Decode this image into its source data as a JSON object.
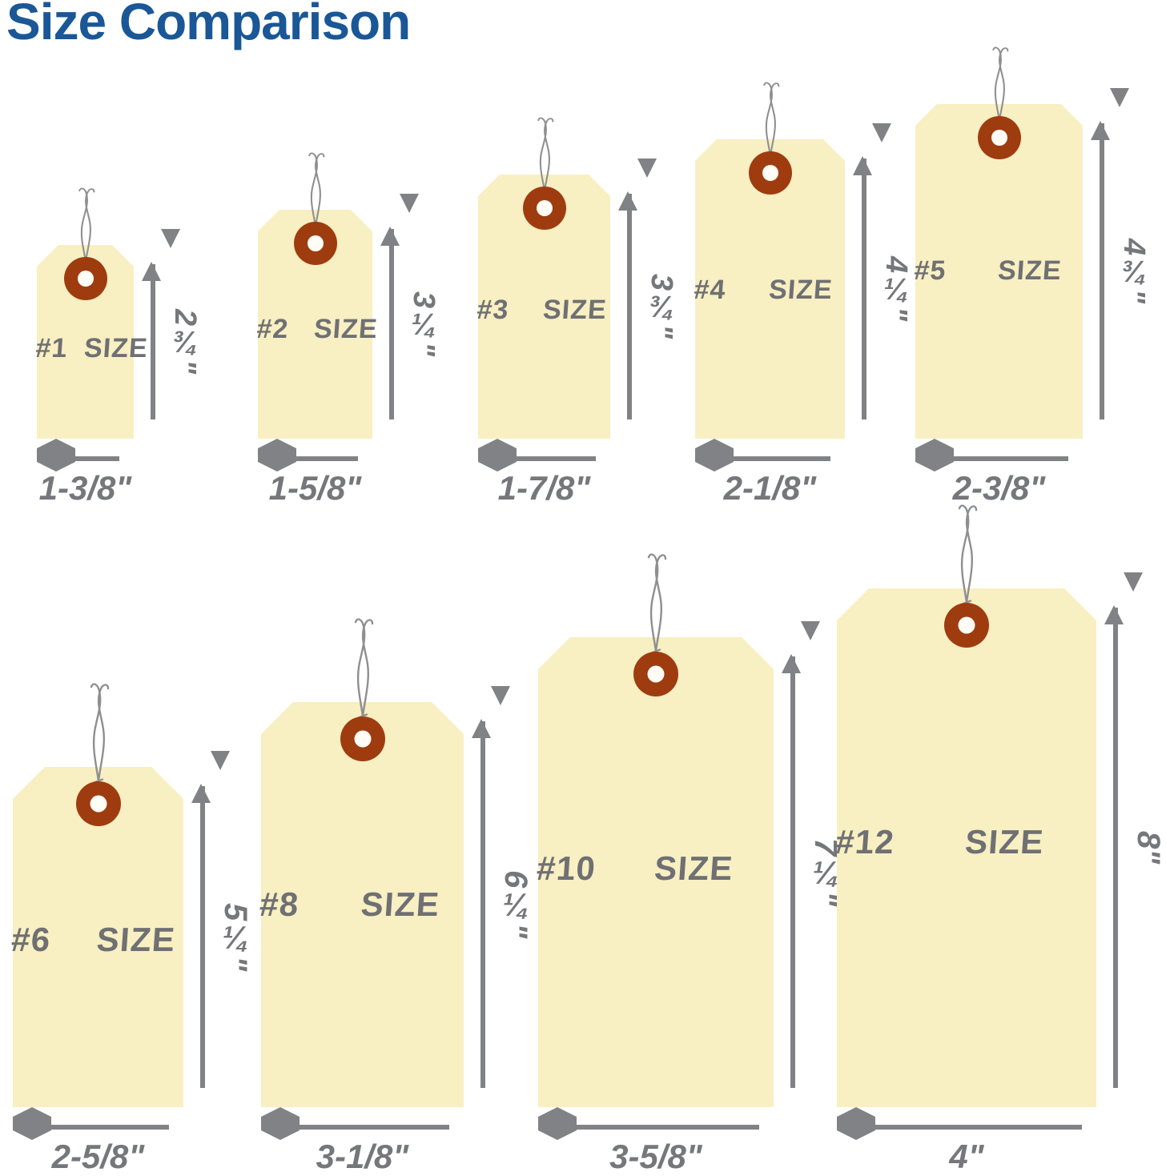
{
  "title": "Size Comparison",
  "colors": {
    "title": "#1a5796",
    "background": "#ffffff",
    "tag_fill": "#f8efc2",
    "grommet": "#9e3c10",
    "grommet_hole": "#fffdf6",
    "tag_text": "#6f7073",
    "dimension_text": "#76777b",
    "arrow": "#808285",
    "wire": "#8e8f91"
  },
  "rows": [
    {
      "tags": [
        {
          "size_word": "SIZE",
          "size_number": "#1",
          "height_label": "2¾\"",
          "width_label": "1-3/8\"",
          "height_in": 2.75,
          "width_in": 1.375
        },
        {
          "size_word": "SIZE",
          "size_number": "#2",
          "height_label": "3¼\"",
          "width_label": "1-5/8\"",
          "height_in": 3.25,
          "width_in": 1.625
        },
        {
          "size_word": "SIZE",
          "size_number": "#3",
          "height_label": "3¾\"",
          "width_label": "1-7/8\"",
          "height_in": 3.75,
          "width_in": 1.875
        },
        {
          "size_word": "SIZE",
          "size_number": "#4",
          "height_label": "4¼\"",
          "width_label": "2-1/8\"",
          "height_in": 4.25,
          "width_in": 2.125
        },
        {
          "size_word": "SIZE",
          "size_number": "#5",
          "height_label": "4¾\"",
          "width_label": "2-3/8\"",
          "height_in": 4.75,
          "width_in": 2.375
        }
      ]
    },
    {
      "tags": [
        {
          "size_word": "SIZE",
          "size_number": "#6",
          "height_label": "5¼\"",
          "width_label": "2-5/8\"",
          "height_in": 5.25,
          "width_in": 2.625
        },
        {
          "size_word": "SIZE",
          "size_number": "#8",
          "height_label": "6¼\"",
          "width_label": "3-1/8\"",
          "height_in": 6.25,
          "width_in": 3.125
        },
        {
          "size_word": "SIZE",
          "size_number": "#10",
          "height_label": "7¼\"",
          "width_label": "3-5/8\"",
          "height_in": 7.25,
          "width_in": 3.625
        },
        {
          "size_word": "SIZE",
          "size_number": "#12",
          "height_label": "8\"",
          "width_label": "4\"",
          "height_in": 8,
          "width_in": 4
        }
      ]
    }
  ]
}
